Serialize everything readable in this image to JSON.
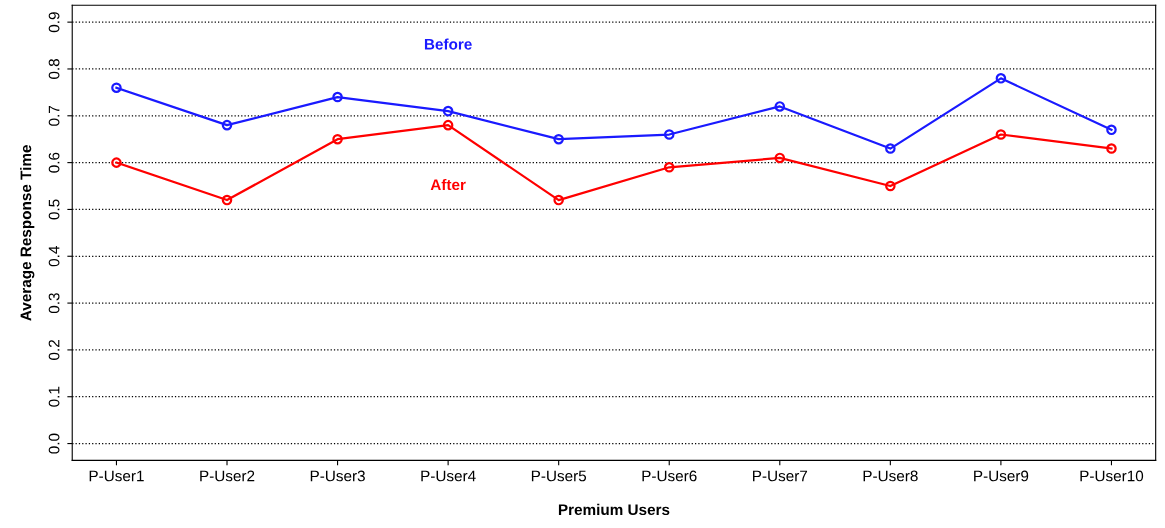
{
  "chart_data": {
    "type": "line",
    "xlabel": "Premium Users",
    "ylabel": "Average Response Time",
    "categories": [
      "P-User1",
      "P-User2",
      "P-User3",
      "P-User4",
      "P-User5",
      "P-User6",
      "P-User7",
      "P-User8",
      "P-User9",
      "P-User10"
    ],
    "series": [
      {
        "name": "Before",
        "color": "#1a1aff",
        "values": [
          0.76,
          0.68,
          0.74,
          0.71,
          0.65,
          0.66,
          0.72,
          0.63,
          0.78,
          0.67
        ]
      },
      {
        "name": "After",
        "color": "#ff0000",
        "values": [
          0.6,
          0.52,
          0.65,
          0.68,
          0.52,
          0.59,
          0.61,
          0.55,
          0.66,
          0.63
        ]
      }
    ],
    "ylim": [
      -0.036,
      0.936
    ],
    "yticks": [
      {
        "value": 0,
        "label": "0.0"
      },
      0.1,
      0.2,
      0.3,
      0.4,
      0.5,
      0.6,
      0.7,
      0.8,
      0.9
    ],
    "grid": "y",
    "marker": "circle",
    "line_style": "solid",
    "legend": false
  }
}
